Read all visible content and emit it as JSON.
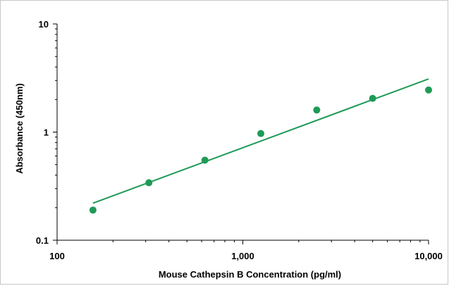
{
  "chart_data": {
    "type": "scatter",
    "title": "",
    "xlabel": "Mouse Cathepsin B Concentration (pg/ml)",
    "ylabel": "Absorbance (450nm)",
    "x_scale": "log",
    "y_scale": "log",
    "xlim": [
      100,
      10000
    ],
    "ylim": [
      0.1,
      10
    ],
    "x_ticks": [
      {
        "value": 100,
        "label": "100"
      },
      {
        "value": 1000,
        "label": "1,000"
      },
      {
        "value": 10000,
        "label": "10,000"
      }
    ],
    "y_ticks": [
      {
        "value": 0.1,
        "label": "0.1"
      },
      {
        "value": 1,
        "label": "1"
      },
      {
        "value": 10,
        "label": "10"
      }
    ],
    "grid": false,
    "legend": "none",
    "color": "#1f9a57",
    "series": [
      {
        "points": [
          {
            "x": 156,
            "y": 0.19
          },
          {
            "x": 312,
            "y": 0.34
          },
          {
            "x": 625,
            "y": 0.55
          },
          {
            "x": 1250,
            "y": 0.97
          },
          {
            "x": 2500,
            "y": 1.6
          },
          {
            "x": 5000,
            "y": 2.05
          },
          {
            "x": 10000,
            "y": 2.45
          }
        ]
      }
    ],
    "fit_line": {
      "x": [
        156,
        10000
      ],
      "y": [
        0.22,
        3.1
      ]
    }
  }
}
